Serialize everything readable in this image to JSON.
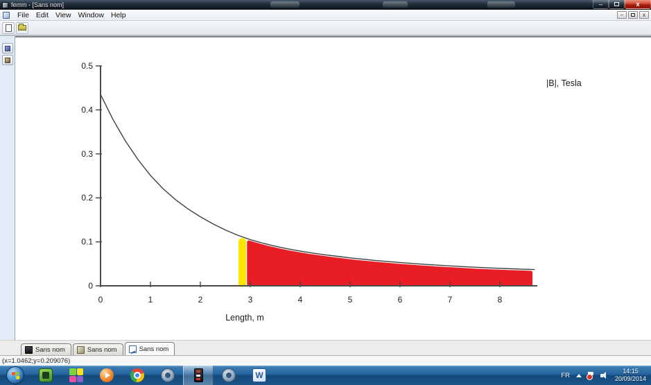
{
  "window": {
    "title": "femm - [Sans nom]",
    "caption": {
      "minimize_glyph": "–",
      "close_glyph": "x"
    }
  },
  "menu": {
    "items": [
      "File",
      "Edit",
      "View",
      "Window",
      "Help"
    ],
    "mdi": {
      "minimize_glyph": "–",
      "close_glyph": "x"
    }
  },
  "toolbar": {
    "buttons": [
      "new-file",
      "open-file"
    ]
  },
  "chart_data": {
    "type": "line",
    "title": "",
    "xlabel": "Length, m",
    "legend": "|B|, Tesla",
    "xlim": [
      0,
      8.75
    ],
    "ylim": [
      0,
      0.5
    ],
    "xticks": [
      0,
      1,
      2,
      3,
      4,
      5,
      6,
      7,
      8
    ],
    "yticks": [
      0,
      0.1,
      0.2,
      0.3,
      0.4,
      0.5
    ],
    "grid": false,
    "legend_position": "top-right",
    "series": [
      {
        "name": "|B|, Tesla",
        "x": [
          0,
          0.25,
          0.5,
          0.75,
          1,
          1.25,
          1.5,
          1.75,
          2,
          2.25,
          2.5,
          2.75,
          3,
          3.25,
          3.5,
          3.75,
          4,
          4.25,
          4.5,
          4.75,
          5,
          5.25,
          5.5,
          5.75,
          6,
          6.25,
          6.5,
          6.75,
          7,
          7.25,
          7.5,
          7.75,
          8,
          8.25,
          8.5,
          8.7
        ],
        "y": [
          0.435,
          0.378,
          0.329,
          0.287,
          0.251,
          0.221,
          0.196,
          0.175,
          0.157,
          0.141,
          0.127,
          0.115,
          0.105,
          0.097,
          0.09,
          0.084,
          0.079,
          0.0745,
          0.0705,
          0.067,
          0.0635,
          0.0605,
          0.0578,
          0.0553,
          0.053,
          0.0508,
          0.0488,
          0.047,
          0.0453,
          0.0437,
          0.0422,
          0.0409,
          0.0397,
          0.0386,
          0.0376,
          0.0369
        ]
      }
    ],
    "annotations": {
      "highlight_marker": {
        "type": "vline",
        "x": 2.84,
        "y_from": 0.006,
        "y_to": 0.1,
        "color": "#ffe400",
        "width": 11
      },
      "highlight_area": {
        "type": "area_under_curve",
        "x_from": 2.97,
        "x_to": 8.62,
        "top_offset": 0.007,
        "baseline": 0.004,
        "color": "#e81d25"
      }
    }
  },
  "tabs": {
    "items": [
      {
        "label": "Sans nom",
        "icon": "model-doc-icon",
        "active": false
      },
      {
        "label": "Sans nom",
        "icon": "mesh-icon",
        "active": false
      },
      {
        "label": "Sans nom",
        "icon": "plot-icon",
        "active": true
      }
    ]
  },
  "statusbar": {
    "text": "(x=1.0462;y=0.209076)"
  },
  "taskbar": {
    "apps": [
      {
        "icon": "green-app-icon",
        "active": false
      },
      {
        "icon": "blocks-app-icon",
        "active": false
      },
      {
        "icon": "media-player-icon",
        "active": false
      },
      {
        "icon": "chrome-icon",
        "active": false
      },
      {
        "icon": "swirl-app-icon",
        "active": false
      },
      {
        "icon": "femm-magnet-icon",
        "active": true
      },
      {
        "icon": "swirl-app-icon",
        "active": false
      },
      {
        "icon": "word-icon",
        "active": false
      }
    ],
    "word_label": "W",
    "tray": {
      "language": "FR",
      "time": "14:15",
      "date": "20/09/2014"
    }
  }
}
